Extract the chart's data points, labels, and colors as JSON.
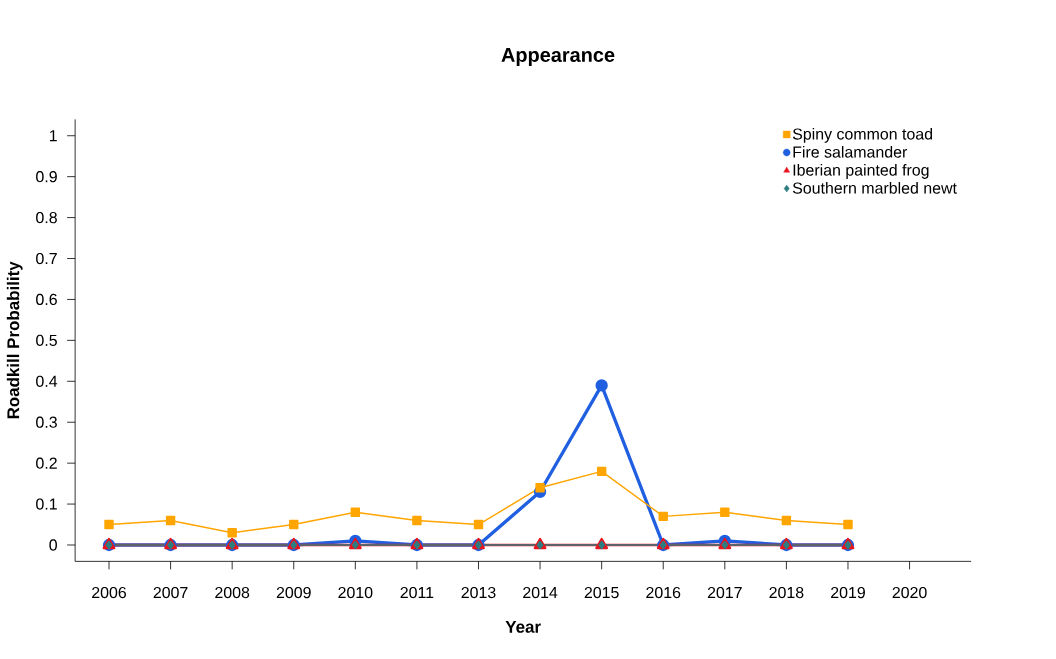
{
  "chart_data": {
    "type": "line",
    "title": "Appearance",
    "xlabel": "Year",
    "ylabel": "Roadkill Probability",
    "categories": [
      "2006",
      "2007",
      "2008",
      "2009",
      "2010",
      "2011",
      "2013",
      "2014",
      "2015",
      "2016",
      "2017",
      "2018",
      "2019",
      "2020"
    ],
    "series": [
      {
        "name": "Spiny common toad",
        "color": "#ffa500",
        "marker": "square",
        "values": [
          0.05,
          0.06,
          0.03,
          0.05,
          0.08,
          0.06,
          0.05,
          0.14,
          0.18,
          0.07,
          0.08,
          0.06,
          0.05,
          null
        ]
      },
      {
        "name": "Fire salamander",
        "color": "#1f5fe0",
        "marker": "circle",
        "values": [
          0,
          0,
          0,
          0,
          0.01,
          0,
          0,
          0.13,
          0.39,
          0,
          0.01,
          0,
          0,
          null
        ]
      },
      {
        "name": "Iberian painted frog",
        "color": "#e8141e",
        "marker": "triangle",
        "values": [
          0,
          0,
          0,
          0,
          0,
          0,
          0,
          0,
          0,
          0,
          0,
          0,
          0,
          null
        ]
      },
      {
        "name": "Southern marbled newt",
        "color": "#2e7d80",
        "marker": "diamond",
        "values": [
          0,
          0,
          0,
          0,
          0,
          0,
          0,
          0,
          0,
          0,
          0,
          0,
          0,
          null
        ]
      }
    ],
    "ylim": [
      -0.04,
      1.04
    ],
    "yticks": [
      0,
      0.1,
      0.2,
      0.3,
      0.4,
      0.5,
      0.6,
      0.7,
      0.8,
      0.9,
      1
    ],
    "legend": "top right",
    "grid": false
  }
}
